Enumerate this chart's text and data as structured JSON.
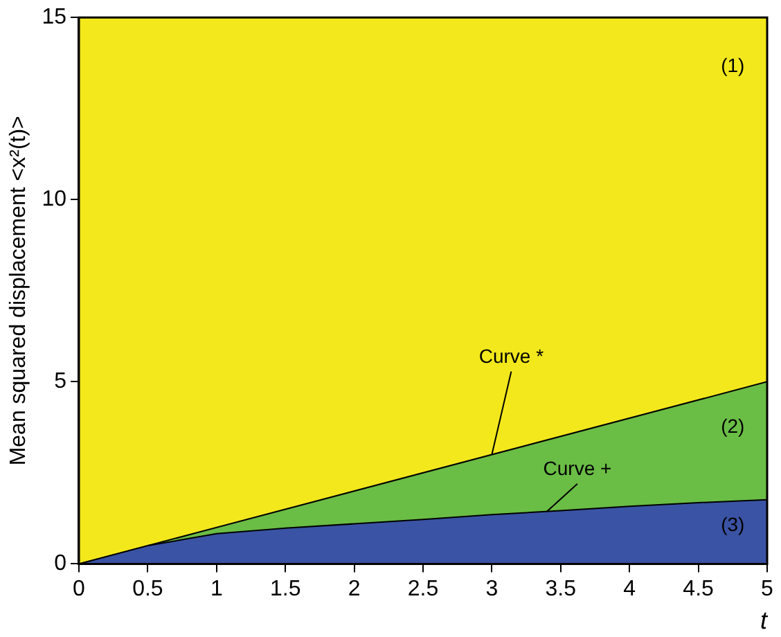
{
  "chart_data": {
    "type": "area",
    "ylabel": "Mean squared displacement <x²(t)>",
    "xlabel": "t",
    "xlim": [
      0,
      5
    ],
    "ylim": [
      0,
      15
    ],
    "xticks": [
      0,
      0.5,
      1,
      1.5,
      2,
      2.5,
      3,
      3.5,
      4,
      4.5,
      5
    ],
    "yticks": [
      0,
      5,
      10,
      15
    ],
    "legend": false,
    "marker": "none",
    "bands": [
      {
        "axis": "y",
        "from": 0,
        "to": 15,
        "color": "#f2e81c"
      }
    ],
    "series": [
      {
        "color": "#6abd45",
        "x": [
          0,
          5
        ],
        "values": [
          0,
          5
        ]
      },
      {
        "color": "#3a53a4",
        "x": [
          0,
          0.5,
          1,
          1.5,
          2,
          2.5,
          3,
          3.5,
          4,
          4.5,
          5
        ],
        "values": [
          0,
          0.5,
          0.83,
          0.98,
          1.1,
          1.22,
          1.35,
          1.46,
          1.58,
          1.68,
          1.76
        ]
      }
    ],
    "annotations": [
      {
        "text": "Curve *",
        "x": 3,
        "y": 3
      },
      {
        "text": "Curve +",
        "x": 3.4,
        "y": 1.44
      },
      "(1)",
      "(2)",
      "(3)"
    ]
  }
}
